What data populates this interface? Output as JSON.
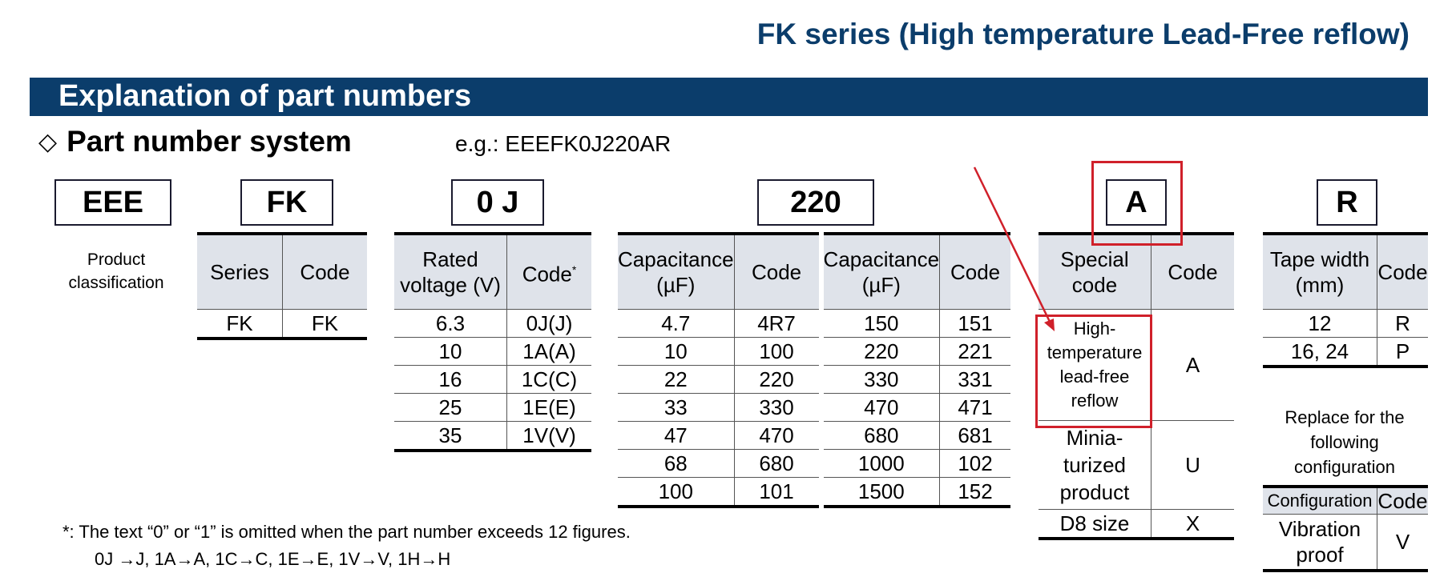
{
  "header": {
    "title": "FK series (High temperature Lead-Free reflow)",
    "banner": "Explanation of part numbers",
    "subhead": "Part number system",
    "example": "e.g.: EEEFK0J220AR"
  },
  "codes": {
    "c1": "EEE",
    "c2": "FK",
    "c3": "0 J",
    "c4": "220",
    "c5": "A",
    "c6": "R"
  },
  "product_classification": "Product classification",
  "series_table": {
    "headers": [
      "Series",
      "Code"
    ],
    "rows": [
      [
        "FK",
        "FK"
      ]
    ]
  },
  "voltage_table": {
    "headers": [
      "Rated voltage (V)",
      "Code"
    ],
    "header_mark": "*",
    "rows": [
      [
        "6.3",
        "0J(J)"
      ],
      [
        "10",
        "1A(A)"
      ],
      [
        "16",
        "1C(C)"
      ],
      [
        "25",
        "1E(E)"
      ],
      [
        "35",
        "1V(V)"
      ]
    ]
  },
  "capacitance_table": {
    "headers": [
      "Capacitance (µF)",
      "Code",
      "Capacitance (µF)",
      "Code"
    ],
    "rows": [
      [
        "4.7",
        "4R7",
        "150",
        "151"
      ],
      [
        "10",
        "100",
        "220",
        "221"
      ],
      [
        "22",
        "220",
        "330",
        "331"
      ],
      [
        "33",
        "330",
        "470",
        "471"
      ],
      [
        "47",
        "470",
        "680",
        "681"
      ],
      [
        "68",
        "680",
        "1000",
        "102"
      ],
      [
        "100",
        "101",
        "1500",
        "152"
      ]
    ]
  },
  "special_table": {
    "headers": [
      "Special code",
      "Code"
    ],
    "rows": [
      [
        "High-temperature lead-free reflow",
        "A"
      ],
      [
        "Minia-turized product",
        "U"
      ],
      [
        "D8 size",
        "X"
      ]
    ]
  },
  "tape_table": {
    "headers": [
      "Tape width (mm)",
      "Code"
    ],
    "rows": [
      [
        "12",
        "R"
      ],
      [
        "16, 24",
        "P"
      ]
    ]
  },
  "replace_note": "Replace for the following configuration",
  "config_table": {
    "headers": [
      "Configuration",
      "Code"
    ],
    "rows": [
      [
        "Vibration proof",
        "V"
      ]
    ]
  },
  "notes": {
    "line1": "*: The text “0” or “1” is omitted when the part number exceeds 12 figures.",
    "line2": "0J →J, 1A→A, 1C→C, 1E→E, 1V→V, 1H→H"
  },
  "colors": {
    "brand_blue": "#0b3d6b",
    "header_fill": "#dfe3ea",
    "highlight_red": "#d0202a"
  }
}
